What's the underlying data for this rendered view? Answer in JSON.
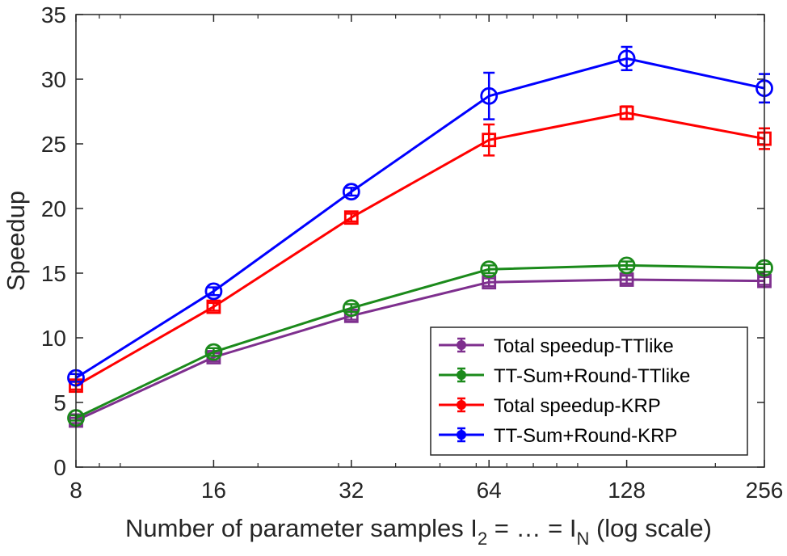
{
  "chart_data": {
    "type": "line",
    "title": "",
    "xlabel": {
      "prefix": "Number of parameter samples I",
      "sub1": "2",
      "middle": " = … = I",
      "sub2": "N",
      "suffix": " (log scale)"
    },
    "ylabel": "Speedup",
    "xscale": "log2",
    "x": [
      8,
      16,
      32,
      64,
      128,
      256
    ],
    "xticks": [
      "8",
      "16",
      "32",
      "64",
      "128",
      "256"
    ],
    "xlim": [
      8,
      256
    ],
    "ylim": [
      0,
      35
    ],
    "yticks": [
      "0",
      "5",
      "10",
      "15",
      "20",
      "25",
      "30",
      "35"
    ],
    "grid": false,
    "legend_position": "bottom-right",
    "series": [
      {
        "name": "Total speedup-TTlike",
        "color": "#7E2F8E",
        "marker": "square",
        "values": [
          3.6,
          8.5,
          11.7,
          14.3,
          14.5,
          14.4
        ],
        "errors": [
          0.2,
          0.3,
          0.3,
          0.3,
          0.3,
          0.3
        ]
      },
      {
        "name": "TT-Sum+Round-TTlike",
        "color": "#1B8A1B",
        "marker": "circle",
        "values": [
          3.8,
          8.9,
          12.3,
          15.3,
          15.6,
          15.4
        ],
        "errors": [
          0.2,
          0.3,
          0.3,
          0.3,
          0.3,
          0.3
        ]
      },
      {
        "name": "Total speedup-KRP",
        "color": "#FF0000",
        "marker": "square",
        "values": [
          6.3,
          12.4,
          19.3,
          25.3,
          27.4,
          25.4
        ],
        "errors": [
          0.3,
          0.3,
          0.3,
          1.2,
          0.5,
          0.8
        ]
      },
      {
        "name": "TT-Sum+Round-KRP",
        "color": "#0000FF",
        "marker": "circle",
        "values": [
          6.9,
          13.6,
          21.3,
          28.7,
          31.6,
          29.3
        ],
        "errors": [
          0.3,
          0.3,
          0.3,
          1.8,
          0.9,
          1.1
        ]
      }
    ]
  }
}
